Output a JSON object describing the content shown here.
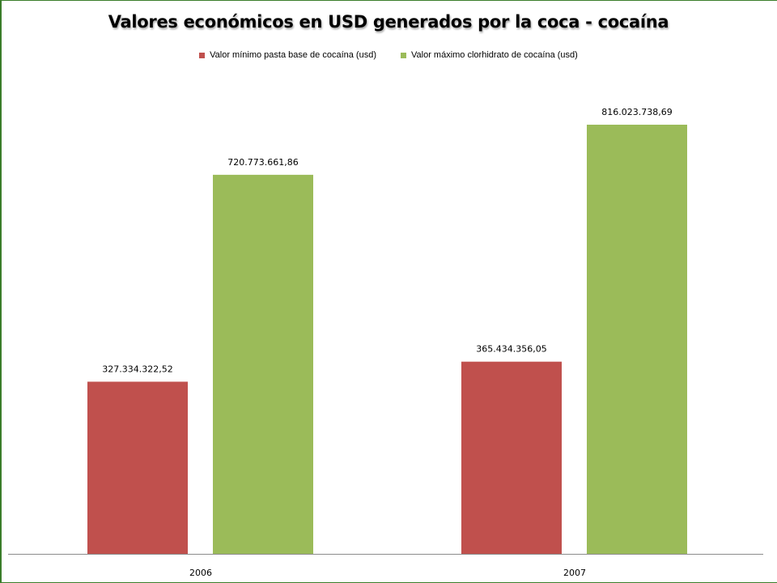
{
  "chart_data": {
    "type": "bar",
    "title": "Valores económicos en USD generados por la coca - cocaína",
    "categories": [
      "2006",
      "2007"
    ],
    "series": [
      {
        "name": "Valor mínimo pasta base de cocaína (usd)",
        "color": "#c0504d",
        "values": [
          327334322.52,
          365434356.05
        ],
        "labels": [
          "327.334.322,52",
          "365.434.356,05"
        ]
      },
      {
        "name": "Valor máximo clorhidrato de cocaína (usd)",
        "color": "#9bbb59",
        "values": [
          720773661.86,
          816023738.69
        ],
        "labels": [
          "720.773.661,86",
          "816.023.738,69"
        ]
      }
    ],
    "xlabel": "",
    "ylabel": "",
    "ylim": [
      0,
      900000000
    ],
    "grid": false,
    "legend_position": "top"
  }
}
